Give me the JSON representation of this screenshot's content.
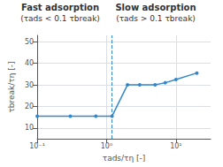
{
  "chart_data": {
    "type": "line",
    "x": [
      0.1,
      0.3,
      0.7,
      1.2,
      2.0,
      3.0,
      5.0,
      7.0,
      10.0,
      20.0
    ],
    "values": [
      15.5,
      15.5,
      15.5,
      15.5,
      30.0,
      30.0,
      30.0,
      31.0,
      32.5,
      35.5
    ],
    "color": "#3388CC",
    "marker": "circle",
    "log": "x",
    "xlim": [
      0.1,
      31.622776601683793
    ],
    "xticks": [
      {
        "value": 0.1,
        "label": "10⁻¹"
      },
      {
        "value": 1,
        "label": "10⁰"
      },
      {
        "value": 10,
        "label": "10¹"
      }
    ],
    "ylim": [
      5,
      53
    ],
    "yticks": [
      10,
      20,
      30,
      40,
      50
    ],
    "grid": true,
    "xlabel": "τads/τη [-]",
    "ylabel": "τbreak/τη [-]",
    "annotations": [
      "Fast adsorption",
      "(τads < 0.1 τbreak)",
      "Slow adsorption",
      "(τads > 0.1 τbreak)"
    ],
    "vline_x": 1.2
  }
}
